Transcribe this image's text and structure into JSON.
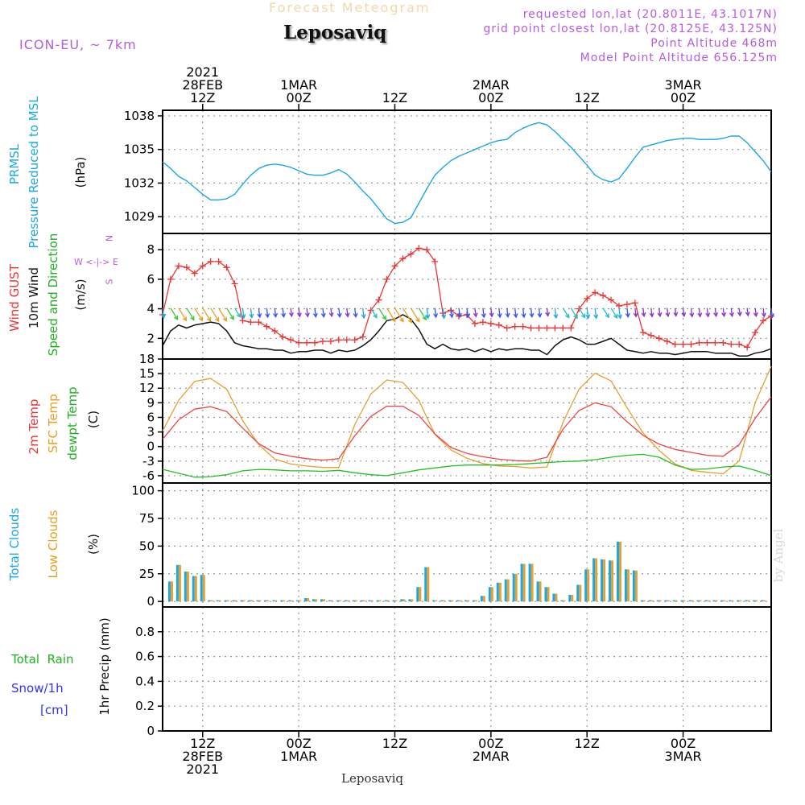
{
  "header": {
    "subtitle": "Forecast Meteogram",
    "title": "Leposaviq",
    "model": "ICON-EU, ~ 7km",
    "info_lines": [
      "requested lon,lat (20.8011E, 43.1017N)",
      "grid point closest lon,lat (20.8125E, 43.125N)",
      "Point Altitude 468m",
      "Model Point Altitude 656.125m"
    ]
  },
  "time_axis": {
    "top_labels": [
      {
        "lines": [
          "2021",
          "28FEB",
          "12Z"
        ],
        "hour": 12
      },
      {
        "lines": [
          "1MAR",
          "00Z"
        ],
        "hour": 24
      },
      {
        "lines": [
          "12Z"
        ],
        "hour": 36
      },
      {
        "lines": [
          "2MAR",
          "00Z"
        ],
        "hour": 48
      },
      {
        "lines": [
          "12Z"
        ],
        "hour": 60
      },
      {
        "lines": [
          "3MAR",
          "00Z"
        ],
        "hour": 72
      }
    ],
    "bottom_labels": [
      {
        "lines": [
          "12Z",
          "28FEB",
          "2021"
        ],
        "hour": 12
      },
      {
        "lines": [
          "00Z",
          "1MAR"
        ],
        "hour": 24
      },
      {
        "lines": [
          "12Z"
        ],
        "hour": 36
      },
      {
        "lines": [
          "00Z",
          "2MAR"
        ],
        "hour": 48
      },
      {
        "lines": [
          "12Z"
        ],
        "hour": 60
      },
      {
        "lines": [
          "00Z",
          "3MAR"
        ],
        "hour": 72
      }
    ],
    "start_hour": 7,
    "end_hour": 83,
    "footer_label": "Leposaviq"
  },
  "panel_labels": {
    "pressure": [
      "PRMSL",
      "Pressure Reduced to MSL",
      "(hPa)"
    ],
    "wind": [
      "Wind GUST",
      "10m Wind",
      "Speed and Direction",
      "(m/s)"
    ],
    "compass": [
      "N",
      "W <-|-> E",
      "S"
    ],
    "temp": [
      "2m Temp",
      "SFC Temp",
      "dewpt Temp",
      "(C)"
    ],
    "clouds": [
      "Total Clouds",
      "Low Clouds",
      "(%)"
    ],
    "precip": [
      "Total  Rain",
      "Snow/1h",
      "[cm]",
      "1hr Precip (mm)"
    ]
  },
  "watermark": "by Angel",
  "colors": {
    "pressure": "#1aa7e6",
    "gust": "#ee3333",
    "wind": "#111111",
    "temp2m": "#ee4444",
    "sfc": "#e6a030",
    "dewpt": "#20c020",
    "cloud_total": "#1aa7e6",
    "cloud_low": "#e6a030"
  },
  "chart_data": [
    {
      "type": "line",
      "title": "PRMSL Pressure Reduced to MSL",
      "ylabel": "hPa",
      "ylim": [
        1027.5,
        1038.5
      ],
      "yticks": [
        1029,
        1032,
        1035,
        1038
      ],
      "series": [
        {
          "name": "PRMSL",
          "x": [
            7,
            8,
            9,
            10,
            11,
            12,
            13,
            14,
            15,
            16,
            17,
            18,
            19,
            20,
            21,
            22,
            23,
            24,
            25,
            26,
            27,
            28,
            29,
            30,
            31,
            32,
            33,
            34,
            35,
            36,
            37,
            38,
            39,
            40,
            41,
            42,
            43,
            44,
            45,
            46,
            47,
            48,
            49,
            50,
            51,
            52,
            53,
            54,
            55,
            56,
            57,
            58,
            59,
            60,
            61,
            62,
            63,
            64,
            65,
            66,
            67,
            68,
            69,
            70,
            71,
            72,
            73,
            74,
            75,
            76,
            77,
            78,
            79,
            80,
            81,
            82,
            83
          ],
          "values": [
            1033.9,
            1033.3,
            1032.6,
            1032.2,
            1031.6,
            1031.0,
            1030.5,
            1030.5,
            1030.6,
            1031.0,
            1031.9,
            1032.7,
            1033.3,
            1033.6,
            1033.7,
            1033.6,
            1033.4,
            1033.1,
            1032.8,
            1032.7,
            1032.7,
            1032.9,
            1033.2,
            1032.8,
            1032.1,
            1031.3,
            1030.6,
            1029.7,
            1028.8,
            1028.4,
            1028.5,
            1028.9,
            1030.2,
            1031.5,
            1032.7,
            1033.4,
            1034.0,
            1034.4,
            1034.7,
            1035.0,
            1035.3,
            1035.6,
            1035.8,
            1035.9,
            1036.5,
            1036.9,
            1037.2,
            1037.4,
            1037.2,
            1036.6,
            1035.9,
            1035.2,
            1034.4,
            1033.6,
            1032.7,
            1032.3,
            1032.1,
            1032.4,
            1033.3,
            1034.3,
            1035.2,
            1035.4,
            1035.6,
            1035.8,
            1035.9,
            1036.0,
            1036.0,
            1035.9,
            1035.9,
            1035.9,
            1036.0,
            1036.2,
            1036.2,
            1035.6,
            1034.8,
            1034.0,
            1033.0
          ]
        }
      ]
    },
    {
      "type": "line",
      "title": "Wind GUST / 10m Wind Speed and Direction",
      "ylabel": "m/s",
      "ylim": [
        0.6,
        9.1
      ],
      "yticks": [
        2,
        4,
        6,
        8
      ],
      "series": [
        {
          "name": "Wind GUST",
          "x": [
            7,
            8,
            9,
            10,
            11,
            12,
            13,
            14,
            15,
            16,
            17,
            18,
            19,
            20,
            21,
            22,
            23,
            24,
            25,
            26,
            27,
            28,
            29,
            30,
            31,
            32,
            33,
            34,
            35,
            36,
            37,
            38,
            39,
            40,
            41,
            42,
            43,
            44,
            45,
            46,
            47,
            48,
            49,
            50,
            51,
            52,
            53,
            54,
            55,
            56,
            57,
            58,
            59,
            60,
            61,
            62,
            63,
            64,
            65,
            66,
            67,
            68,
            69,
            70,
            71,
            72,
            73,
            74,
            75,
            76,
            77,
            78,
            79,
            80,
            81,
            82,
            83
          ],
          "values": [
            3.6,
            6.0,
            6.9,
            6.8,
            6.4,
            6.9,
            7.2,
            7.2,
            6.8,
            5.7,
            3.2,
            3.1,
            3.1,
            2.8,
            2.5,
            2.1,
            1.9,
            1.7,
            1.7,
            1.7,
            1.8,
            1.8,
            1.9,
            1.9,
            1.9,
            2.1,
            3.9,
            4.6,
            6.0,
            6.9,
            7.4,
            7.7,
            8.1,
            8.0,
            7.2,
            3.7,
            3.9,
            3.5,
            3.6,
            3.0,
            3.1,
            3.0,
            2.9,
            2.7,
            2.8,
            2.8,
            2.7,
            2.7,
            2.7,
            2.7,
            2.7,
            2.7,
            4.0,
            4.7,
            5.1,
            4.9,
            4.6,
            4.2,
            4.3,
            4.4,
            2.4,
            2.2,
            2.0,
            1.8,
            1.6,
            1.6,
            1.6,
            1.7,
            1.7,
            1.7,
            1.7,
            1.6,
            1.6,
            1.4,
            2.4,
            3.2,
            3.5
          ]
        },
        {
          "name": "10m Wind",
          "x": [
            7,
            8,
            9,
            10,
            11,
            12,
            13,
            14,
            15,
            16,
            17,
            18,
            19,
            20,
            21,
            22,
            23,
            24,
            25,
            26,
            27,
            28,
            29,
            30,
            31,
            32,
            33,
            34,
            35,
            36,
            37,
            38,
            39,
            40,
            41,
            42,
            43,
            44,
            45,
            46,
            47,
            48,
            49,
            50,
            51,
            52,
            53,
            54,
            55,
            56,
            57,
            58,
            59,
            60,
            61,
            62,
            63,
            64,
            65,
            66,
            67,
            68,
            69,
            70,
            71,
            72,
            73,
            74,
            75,
            76,
            77,
            78,
            79,
            80,
            81,
            82,
            83
          ],
          "values": [
            1.5,
            2.5,
            2.9,
            2.7,
            2.9,
            3.0,
            3.1,
            3.0,
            2.5,
            1.7,
            1.5,
            1.4,
            1.3,
            1.3,
            1.2,
            1.2,
            1.0,
            1.1,
            1.1,
            1.2,
            1.2,
            1.0,
            1.2,
            1.1,
            1.2,
            1.5,
            1.9,
            2.5,
            3.2,
            3.3,
            3.6,
            3.3,
            2.6,
            1.6,
            1.3,
            1.6,
            1.3,
            1.2,
            1.3,
            1.1,
            1.3,
            1.1,
            1.3,
            1.2,
            1.3,
            1.3,
            1.2,
            1.2,
            0.9,
            1.5,
            1.9,
            2.1,
            1.9,
            1.6,
            1.6,
            1.8,
            2.0,
            1.6,
            1.2,
            1.1,
            1.0,
            1.1,
            1.0,
            1.0,
            0.9,
            1.0,
            1.1,
            1.1,
            1.1,
            1.0,
            1.0,
            1.0,
            0.8,
            0.8,
            1.0,
            1.1,
            1.3
          ]
        }
      ]
    },
    {
      "type": "line",
      "title": "2m Temp / SFC Temp / dewpt Temp",
      "ylabel": "C",
      "ylim": [
        -7.5,
        18
      ],
      "yticks": [
        -6,
        -3,
        0,
        3,
        6,
        9,
        12,
        15,
        18
      ],
      "series": [
        {
          "name": "2m Temp",
          "x": [
            7,
            9,
            11,
            13,
            15,
            17,
            19,
            21,
            23,
            25,
            27,
            29,
            31,
            33,
            35,
            37,
            39,
            41,
            43,
            45,
            47,
            49,
            51,
            53,
            55,
            57,
            59,
            61,
            63,
            65,
            67,
            69,
            71,
            73,
            75,
            77,
            79,
            81,
            83
          ],
          "values": [
            1.5,
            5.5,
            7.7,
            8.2,
            7.2,
            3.8,
            0.6,
            -1.3,
            -2.0,
            -2.5,
            -2.8,
            -2.5,
            2.2,
            6.2,
            8.3,
            8.3,
            6.4,
            2.6,
            -0.2,
            -1.4,
            -2.1,
            -2.6,
            -2.9,
            -3.0,
            -2.2,
            3.6,
            7.4,
            9.0,
            8.2,
            5.1,
            2.3,
            0.5,
            -0.6,
            -1.2,
            -1.8,
            -2.0,
            0.4,
            5.8,
            10.2
          ]
        },
        {
          "name": "SFC Temp",
          "x": [
            7,
            9,
            11,
            13,
            15,
            17,
            19,
            21,
            23,
            25,
            27,
            29,
            31,
            33,
            35,
            37,
            39,
            41,
            43,
            45,
            47,
            49,
            51,
            53,
            55,
            57,
            59,
            61,
            63,
            65,
            67,
            69,
            71,
            73,
            75,
            77,
            79,
            81,
            83
          ],
          "values": [
            3.2,
            9.5,
            13.4,
            14.0,
            11.8,
            5.3,
            0.4,
            -2.6,
            -3.6,
            -4.0,
            -4.3,
            -4.3,
            4.5,
            10.8,
            13.7,
            13.2,
            9.5,
            2.5,
            -0.7,
            -2.4,
            -3.5,
            -4.0,
            -4.1,
            -4.4,
            -4.2,
            5.0,
            11.8,
            15.1,
            13.5,
            8.0,
            2.8,
            -0.8,
            -3.6,
            -4.9,
            -5.3,
            -5.6,
            -3.0,
            9.0,
            16.5
          ]
        },
        {
          "name": "dewpt Temp",
          "x": [
            7,
            9,
            11,
            13,
            15,
            17,
            19,
            21,
            23,
            25,
            27,
            29,
            31,
            33,
            35,
            37,
            39,
            41,
            43,
            45,
            47,
            49,
            51,
            53,
            55,
            57,
            59,
            61,
            63,
            65,
            67,
            69,
            71,
            73,
            75,
            77,
            79,
            81,
            83
          ],
          "values": [
            -4.7,
            -5.5,
            -6.3,
            -6.2,
            -5.8,
            -5.0,
            -4.7,
            -4.8,
            -5.0,
            -5.0,
            -5.1,
            -4.9,
            -5.4,
            -5.8,
            -6.0,
            -5.4,
            -4.8,
            -4.4,
            -4.0,
            -3.8,
            -3.8,
            -3.8,
            -3.7,
            -3.5,
            -3.3,
            -3.1,
            -3.0,
            -2.7,
            -2.2,
            -1.8,
            -1.6,
            -2.2,
            -3.8,
            -4.7,
            -4.6,
            -4.2,
            -4.0,
            -4.9,
            -6.0
          ]
        }
      ]
    },
    {
      "type": "bar",
      "title": "Total Clouds / Low Clouds",
      "ylabel": "%",
      "ylim": [
        -5,
        107
      ],
      "yticks": [
        0,
        25,
        50,
        75,
        100
      ],
      "x": [
        8,
        9,
        10,
        11,
        12,
        13,
        14,
        15,
        16,
        17,
        18,
        19,
        20,
        21,
        22,
        23,
        24,
        25,
        26,
        27,
        28,
        29,
        30,
        31,
        32,
        33,
        34,
        35,
        36,
        37,
        38,
        39,
        40,
        41,
        42,
        43,
        44,
        45,
        46,
        47,
        48,
        49,
        50,
        51,
        52,
        53,
        54,
        55,
        56,
        57,
        58,
        59,
        60,
        61,
        62,
        63,
        64,
        65,
        66,
        67,
        68,
        69,
        70,
        71,
        72,
        73,
        74,
        75,
        76,
        77,
        78,
        79,
        80,
        81,
        82
      ],
      "series": [
        {
          "name": "Total Clouds",
          "values": [
            18,
            33,
            27,
            23,
            24,
            0,
            0,
            0,
            0,
            0,
            0,
            0,
            0,
            0,
            0,
            0,
            0,
            3,
            2,
            2,
            0,
            0,
            0,
            0,
            0,
            0,
            0,
            0,
            1,
            2,
            2,
            13,
            31,
            1,
            1,
            0,
            0,
            1,
            1,
            5,
            13,
            17,
            20,
            25,
            34,
            34,
            18,
            13,
            7,
            1,
            6,
            15,
            29,
            39,
            38,
            37,
            54,
            29,
            28,
            0,
            0,
            0,
            0,
            0,
            0,
            0,
            0,
            0,
            0,
            0,
            0,
            0,
            0,
            0,
            0
          ]
        },
        {
          "name": "Low Clouds",
          "values": [
            18,
            33,
            27,
            23,
            24,
            0,
            0,
            0,
            0,
            0,
            0,
            0,
            0,
            0,
            0,
            0,
            0,
            3,
            2,
            2,
            0,
            0,
            0,
            0,
            0,
            0,
            0,
            0,
            1,
            2,
            2,
            13,
            31,
            1,
            1,
            0,
            0,
            1,
            1,
            5,
            13,
            17,
            20,
            25,
            34,
            34,
            18,
            13,
            7,
            1,
            6,
            15,
            29,
            39,
            38,
            37,
            54,
            29,
            28,
            0,
            0,
            0,
            0,
            0,
            0,
            0,
            0,
            0,
            0,
            0,
            0,
            0,
            0,
            0,
            0
          ]
        }
      ]
    },
    {
      "type": "bar",
      "title": "1hr Precip",
      "ylabel": "1hr Precip (mm)",
      "ylim": [
        0,
        1.0
      ],
      "yticks": [
        0,
        0.2,
        0.4,
        0.6,
        0.8
      ],
      "series": [
        {
          "name": "Total Rain",
          "values": []
        },
        {
          "name": "Snow/1h",
          "values": []
        }
      ]
    }
  ]
}
